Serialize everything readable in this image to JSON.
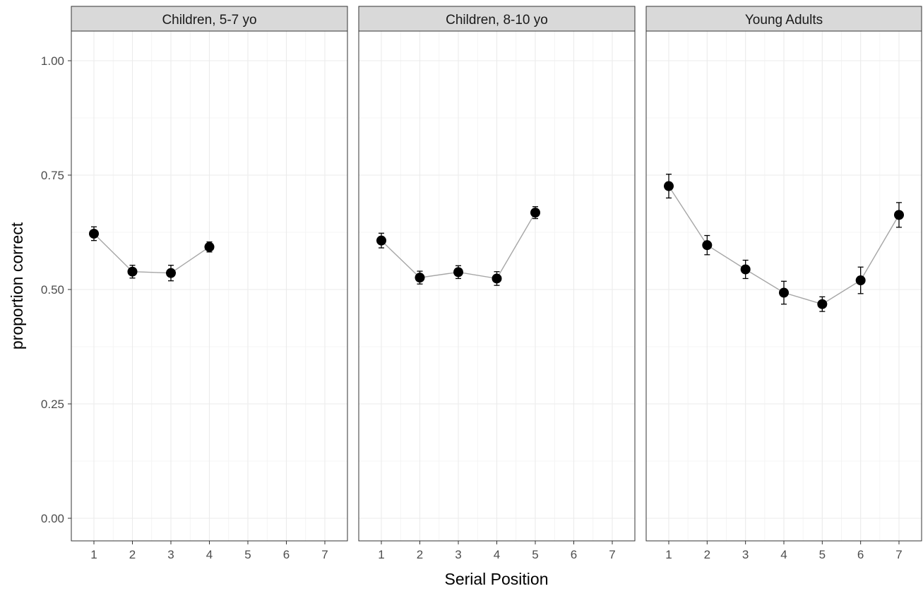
{
  "chart_data": {
    "type": "line",
    "xlabel": "Serial Position",
    "ylabel": "proportion correct",
    "xlim": [
      1,
      7
    ],
    "ylim": [
      0,
      1
    ],
    "x_ticks": [
      "1",
      "2",
      "3",
      "4",
      "5",
      "6",
      "7"
    ],
    "y_ticks": [
      "0.00",
      "0.25",
      "0.50",
      "0.75",
      "1.00"
    ],
    "grid": true,
    "facets": [
      {
        "label": "Children, 5-7 yo",
        "x": [
          1,
          2,
          3,
          4
        ],
        "y": [
          0.622,
          0.539,
          0.536,
          0.593
        ],
        "error": [
          0.015,
          0.014,
          0.017,
          0.011
        ]
      },
      {
        "label": "Children, 8-10 yo",
        "x": [
          1,
          2,
          3,
          4,
          5
        ],
        "y": [
          0.607,
          0.526,
          0.538,
          0.524,
          0.668
        ],
        "error": [
          0.016,
          0.014,
          0.014,
          0.015,
          0.013
        ]
      },
      {
        "label": "Young Adults",
        "x": [
          1,
          2,
          3,
          4,
          5,
          6,
          7
        ],
        "y": [
          0.726,
          0.597,
          0.544,
          0.493,
          0.468,
          0.52,
          0.663
        ],
        "error": [
          0.026,
          0.021,
          0.02,
          0.025,
          0.016,
          0.029,
          0.027
        ]
      }
    ]
  }
}
